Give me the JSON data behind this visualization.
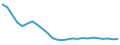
{
  "x": [
    0,
    1,
    2,
    3,
    4,
    5,
    6,
    7,
    8,
    9,
    10,
    11,
    12,
    13,
    14,
    15,
    16,
    17,
    18,
    19,
    20,
    21,
    22,
    23
  ],
  "y": [
    95,
    88,
    70,
    52,
    44,
    50,
    55,
    47,
    38,
    28,
    16,
    12,
    11,
    13,
    15,
    14,
    16,
    15,
    17,
    16,
    14,
    15,
    13,
    14
  ],
  "line_color": "#3a9fd1",
  "linewidth": 1.4,
  "background_color": "#ffffff",
  "ylim": [
    5,
    100
  ],
  "xlim": [
    0,
    23
  ]
}
